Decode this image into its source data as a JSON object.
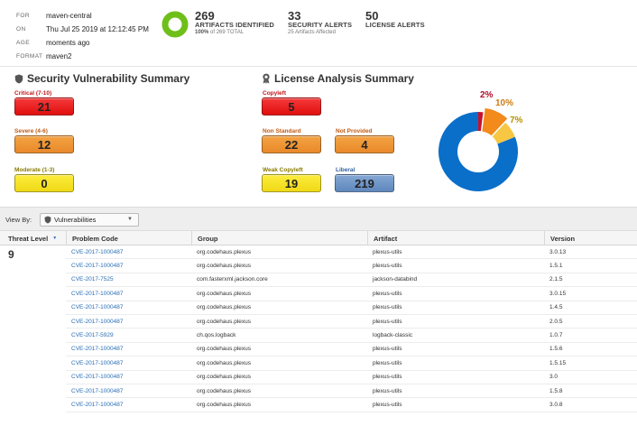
{
  "meta": {
    "rows": [
      {
        "key": "FOR",
        "value": "maven-central"
      },
      {
        "key": "ON",
        "value": "Thu Jul 25 2019 at 12:12:45 PM"
      },
      {
        "key": "AGE",
        "value": "moments ago"
      },
      {
        "key": "FORMAT",
        "value": "maven2"
      }
    ]
  },
  "stats": {
    "artifacts_count": "269",
    "artifacts_label": "ARTIFACTS IDENTIFIED",
    "artifacts_sub_pct": "100%",
    "artifacts_sub_rest": " of 269 TOTAL",
    "security_count": "33",
    "security_label": "SECURITY ALERTS",
    "security_sub": "25 Artifacts Affected",
    "license_count": "50",
    "license_label": "LICENSE ALERTS"
  },
  "security_summary": {
    "title": "Security Vulnerability Summary",
    "critical_label": "Critical (7-10)",
    "critical_value": "21",
    "severe_label": "Severe (4-6)",
    "severe_value": "12",
    "moderate_label": "Moderate (1-3)",
    "moderate_value": "0"
  },
  "license_summary": {
    "title": "License Analysis Summary",
    "copyleft_label": "Copyleft",
    "copyleft_value": "5",
    "non_standard_label": "Non Standard",
    "non_standard_value": "22",
    "not_provided_label": "Not Provided",
    "not_provided_value": "4",
    "weak_copyleft_label": "Weak Copyleft",
    "weak_copyleft_value": "19",
    "liberal_label": "Liberal",
    "liberal_value": "219",
    "pie_labels": {
      "red": "2%",
      "orange": "10%",
      "yellow": "7%"
    }
  },
  "colors": {
    "critical": "#e10e0e",
    "severe": "#e8892a",
    "moderate": "#f0d916",
    "liberal": "#5f87bd",
    "pie_blue": "#0a6fc9",
    "pie_orange": "#f28a1c",
    "pie_yellow": "#f7c744",
    "pie_red": "#c8102e",
    "link": "#2a6fb5"
  },
  "toolbar": {
    "view_by_label": "View By:",
    "view_by_value": "Vulnerabilities"
  },
  "table": {
    "headers": [
      "Threat Level",
      "Problem Code",
      "Group",
      "Artifact",
      "Version"
    ],
    "group_value": "9",
    "rows": [
      {
        "code": "CVE-2017-1000487",
        "group": "org.codehaus.plexus",
        "artifact": "plexus-utils",
        "version": "3.0.13"
      },
      {
        "code": "CVE-2017-1000487",
        "group": "org.codehaus.plexus",
        "artifact": "plexus-utils",
        "version": "1.5.1"
      },
      {
        "code": "CVE-2017-7525",
        "group": "com.fasterxml.jackson.core",
        "artifact": "jackson-databind",
        "version": "2.1.5"
      },
      {
        "code": "CVE-2017-1000487",
        "group": "org.codehaus.plexus",
        "artifact": "plexus-utils",
        "version": "3.0.15"
      },
      {
        "code": "CVE-2017-1000487",
        "group": "org.codehaus.plexus",
        "artifact": "plexus-utils",
        "version": "1.4.5"
      },
      {
        "code": "CVE-2017-1000487",
        "group": "org.codehaus.plexus",
        "artifact": "plexus-utils",
        "version": "2.0.5"
      },
      {
        "code": "CVE-2017-5929",
        "group": "ch.qos.logback",
        "artifact": "logback-classic",
        "version": "1.0.7"
      },
      {
        "code": "CVE-2017-1000487",
        "group": "org.codehaus.plexus",
        "artifact": "plexus-utils",
        "version": "1.5.6"
      },
      {
        "code": "CVE-2017-1000487",
        "group": "org.codehaus.plexus",
        "artifact": "plexus-utils",
        "version": "1.5.15"
      },
      {
        "code": "CVE-2017-1000487",
        "group": "org.codehaus.plexus",
        "artifact": "plexus-utils",
        "version": "3.0"
      },
      {
        "code": "CVE-2017-1000487",
        "group": "org.codehaus.plexus",
        "artifact": "plexus-utils",
        "version": "1.5.8"
      },
      {
        "code": "CVE-2017-1000487",
        "group": "org.codehaus.plexus",
        "artifact": "plexus-utils",
        "version": "3.0.8"
      }
    ]
  }
}
